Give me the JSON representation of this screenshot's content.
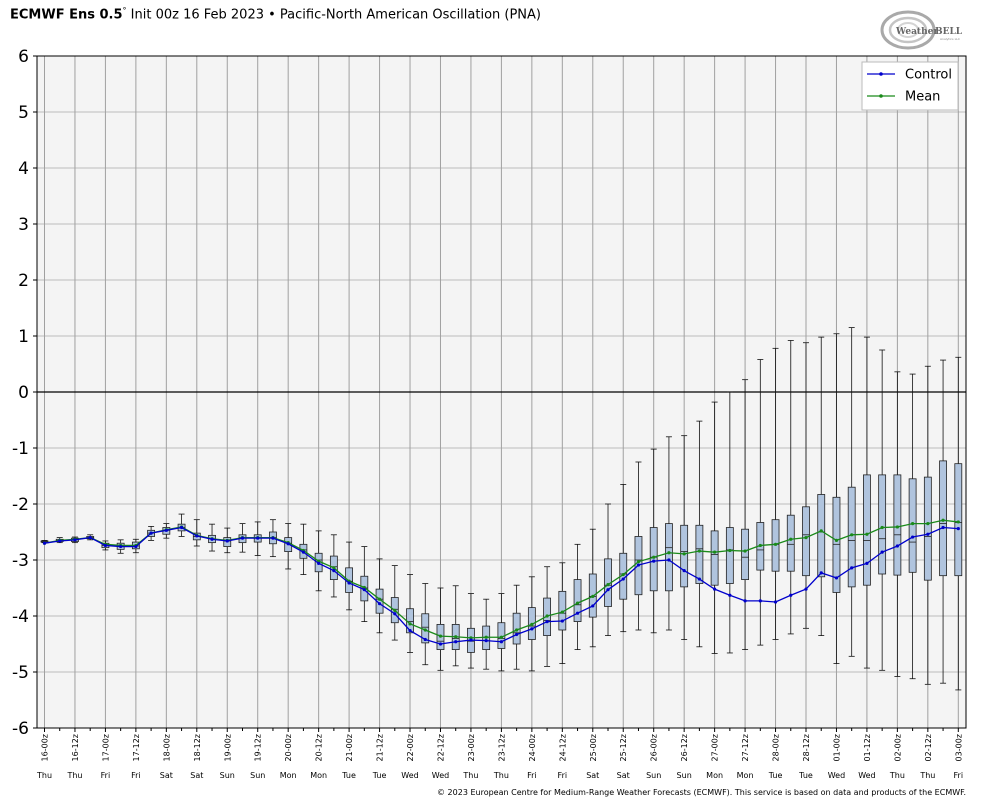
{
  "header": {
    "model": "ECMWF Ens 0.5",
    "degree": "°",
    "rest": " Init 00z 16 Feb 2023 • Pacific-North American Oscillation (PNA)"
  },
  "logo": {
    "text": "WeatherBELL",
    "sub": "Analytics LLC"
  },
  "footer": "© 2023 European Centre for Medium-Range Weather Forecasts (ECMWF). This service is based on data and products of the ECMWF.",
  "chart_data": {
    "type": "box",
    "ylim": [
      -6,
      6
    ],
    "yticks": [
      6,
      5,
      4,
      3,
      2,
      1,
      0,
      -1,
      -2,
      -3,
      -4,
      -5,
      -6
    ],
    "legend": {
      "placement": "top-right",
      "entries": [
        "Control",
        "Mean"
      ]
    },
    "colors": {
      "control": "#0000cc",
      "mean": "#1a8a1a",
      "box": "#b0c4de",
      "plot_bg": "#f4f4f4"
    },
    "x_labels": [
      "16-00z",
      "16-12z",
      "17-00z",
      "17-12z",
      "18-00z",
      "18-12z",
      "19-00z",
      "19-12z",
      "20-00z",
      "20-12z",
      "21-00z",
      "21-12z",
      "22-00z",
      "22-12z",
      "23-00z",
      "23-12z",
      "24-00z",
      "24-12z",
      "25-00z",
      "25-12z",
      "26-00z",
      "26-12z",
      "27-00z",
      "27-12z",
      "28-00z",
      "28-12z",
      "01-00z",
      "01-12z",
      "02-00z",
      "02-12z",
      "03-00z"
    ],
    "day_labels": [
      "Thu",
      "Thu",
      "Fri",
      "Fri",
      "Sat",
      "Sat",
      "Sun",
      "Sun",
      "Mon",
      "Mon",
      "Tue",
      "Tue",
      "Wed",
      "Wed",
      "Thu",
      "Thu",
      "Fri",
      "Fri",
      "Sat",
      "Sat",
      "Sun",
      "Sun",
      "Mon",
      "Mon",
      "Tue",
      "Tue",
      "Wed",
      "Wed",
      "Thu",
      "Thu",
      "Fri"
    ],
    "series": [
      {
        "name": "Control",
        "values": [
          -2.7,
          -2.66,
          -2.64,
          -2.6,
          -2.74,
          -2.76,
          -2.76,
          -2.52,
          -2.47,
          -2.42,
          -2.57,
          -2.63,
          -2.66,
          -2.61,
          -2.61,
          -2.61,
          -2.71,
          -2.86,
          -3.06,
          -3.19,
          -3.41,
          -3.53,
          -3.78,
          -3.96,
          -4.26,
          -4.42,
          -4.5,
          -4.46,
          -4.43,
          -4.44,
          -4.46,
          -4.33,
          -4.23,
          -4.1,
          -4.09,
          -3.95,
          -3.82,
          -3.53,
          -3.34,
          -3.09,
          -3.02,
          -3.0,
          -3.19,
          -3.34,
          -3.52,
          -3.63,
          -3.73,
          -3.73,
          -3.75,
          -3.63,
          -3.52,
          -3.23,
          -3.32,
          -3.14,
          -3.06,
          -2.86,
          -2.75,
          -2.59,
          -2.54,
          -2.42,
          -2.44
        ]
      },
      {
        "name": "Mean",
        "values": [
          -2.7,
          -2.65,
          -2.63,
          -2.6,
          -2.72,
          -2.74,
          -2.74,
          -2.52,
          -2.46,
          -2.41,
          -2.56,
          -2.62,
          -2.65,
          -2.6,
          -2.6,
          -2.6,
          -2.69,
          -2.83,
          -3.02,
          -3.14,
          -3.38,
          -3.49,
          -3.7,
          -3.9,
          -4.14,
          -4.25,
          -4.36,
          -4.37,
          -4.39,
          -4.38,
          -4.38,
          -4.25,
          -4.15,
          -4.0,
          -3.93,
          -3.77,
          -3.65,
          -3.44,
          -3.26,
          -3.03,
          -2.95,
          -2.87,
          -2.89,
          -2.84,
          -2.86,
          -2.83,
          -2.84,
          -2.74,
          -2.72,
          -2.63,
          -2.6,
          -2.48,
          -2.65,
          -2.55,
          -2.54,
          -2.42,
          -2.41,
          -2.35,
          -2.35,
          -2.29,
          -2.32
        ]
      }
    ],
    "boxes": [
      [
        -2.69,
        -2.68,
        -2.67,
        -2.66,
        -2.65
      ],
      [
        -2.69,
        -2.67,
        -2.65,
        -2.63,
        -2.6
      ],
      [
        -2.69,
        -2.67,
        -2.64,
        -2.61,
        -2.59
      ],
      [
        -2.64,
        -2.62,
        -2.6,
        -2.58,
        -2.55
      ],
      [
        -2.82,
        -2.78,
        -2.74,
        -2.7,
        -2.66
      ],
      [
        -2.88,
        -2.81,
        -2.76,
        -2.7,
        -2.64
      ],
      [
        -2.87,
        -2.8,
        -2.75,
        -2.68,
        -2.63
      ],
      [
        -2.65,
        -2.58,
        -2.52,
        -2.47,
        -2.4
      ],
      [
        -2.61,
        -2.54,
        -2.47,
        -2.42,
        -2.35
      ],
      [
        -2.58,
        -2.48,
        -2.42,
        -2.36,
        -2.18
      ],
      [
        -2.75,
        -2.64,
        -2.58,
        -2.52,
        -2.28
      ],
      [
        -2.84,
        -2.69,
        -2.62,
        -2.56,
        -2.36
      ],
      [
        -2.87,
        -2.76,
        -2.66,
        -2.6,
        -2.43
      ],
      [
        -2.86,
        -2.69,
        -2.6,
        -2.55,
        -2.35
      ],
      [
        -2.92,
        -2.68,
        -2.6,
        -2.55,
        -2.32
      ],
      [
        -2.94,
        -2.71,
        -2.6,
        -2.5,
        -2.28
      ],
      [
        -3.16,
        -2.85,
        -2.7,
        -2.6,
        -2.35
      ],
      [
        -3.26,
        -2.97,
        -2.82,
        -2.72,
        -2.36
      ],
      [
        -3.55,
        -3.21,
        -3.0,
        -2.88,
        -2.48
      ],
      [
        -3.66,
        -3.35,
        -3.12,
        -2.93,
        -2.55
      ],
      [
        -3.89,
        -3.58,
        -3.38,
        -3.14,
        -2.68
      ],
      [
        -4.1,
        -3.73,
        -3.5,
        -3.29,
        -2.76
      ],
      [
        -4.3,
        -3.95,
        -3.7,
        -3.52,
        -2.98
      ],
      [
        -4.43,
        -4.12,
        -3.88,
        -3.67,
        -3.1
      ],
      [
        -4.65,
        -4.3,
        -4.1,
        -3.87,
        -3.26
      ],
      [
        -4.87,
        -4.48,
        -4.2,
        -3.96,
        -3.42
      ],
      [
        -4.97,
        -4.6,
        -4.45,
        -4.15,
        -3.5
      ],
      [
        -4.89,
        -4.6,
        -4.4,
        -4.15,
        -3.46
      ],
      [
        -4.93,
        -4.65,
        -4.45,
        -4.22,
        -3.6
      ],
      [
        -4.95,
        -4.6,
        -4.38,
        -4.18,
        -3.7
      ],
      [
        -4.98,
        -4.58,
        -4.4,
        -4.12,
        -3.6
      ],
      [
        -4.95,
        -4.5,
        -4.3,
        -3.95,
        -3.45
      ],
      [
        -4.98,
        -4.42,
        -4.18,
        -3.85,
        -3.3
      ],
      [
        -4.9,
        -4.35,
        -4.08,
        -3.68,
        -3.12
      ],
      [
        -4.85,
        -4.25,
        -3.95,
        -3.56,
        -3.05
      ],
      [
        -4.6,
        -4.1,
        -3.8,
        -3.35,
        -2.72
      ],
      [
        -4.55,
        -4.02,
        -3.65,
        -3.25,
        -2.45
      ],
      [
        -4.35,
        -3.83,
        -3.45,
        -2.98,
        -2.0
      ],
      [
        -4.28,
        -3.7,
        -3.25,
        -2.88,
        -1.65
      ],
      [
        -4.25,
        -3.62,
        -3.0,
        -2.58,
        -1.25
      ],
      [
        -4.3,
        -3.55,
        -2.95,
        -2.42,
        -1.02
      ],
      [
        -4.25,
        -3.55,
        -2.78,
        -2.35,
        -0.8
      ],
      [
        -4.42,
        -3.48,
        -2.85,
        -2.38,
        -0.78
      ],
      [
        -4.55,
        -3.42,
        -2.8,
        -2.38,
        -0.52
      ],
      [
        -4.67,
        -3.45,
        -2.9,
        -2.48,
        -0.18
      ],
      [
        -4.66,
        -3.42,
        -2.82,
        -2.42,
        0.0
      ],
      [
        -4.6,
        -3.35,
        -2.95,
        -2.45,
        0.22
      ],
      [
        -4.52,
        -3.18,
        -2.82,
        -2.33,
        0.58
      ],
      [
        -4.42,
        -3.2,
        -2.72,
        -2.28,
        0.78
      ],
      [
        -4.32,
        -3.2,
        -2.72,
        -2.2,
        0.92
      ],
      [
        -4.22,
        -3.28,
        -2.55,
        -2.05,
        0.88
      ],
      [
        -4.35,
        -3.3,
        -2.5,
        -1.83,
        0.98
      ],
      [
        -4.85,
        -3.58,
        -2.72,
        -1.88,
        1.04
      ],
      [
        -4.72,
        -3.48,
        -2.65,
        -1.7,
        1.15
      ],
      [
        -4.93,
        -3.45,
        -2.65,
        -1.48,
        0.98
      ],
      [
        -4.97,
        -3.25,
        -2.62,
        -1.48,
        0.75
      ],
      [
        -5.08,
        -3.27,
        -2.55,
        -1.48,
        0.36
      ],
      [
        -5.12,
        -3.22,
        -2.68,
        -1.55,
        0.32
      ],
      [
        -5.22,
        -3.36,
        -2.58,
        -1.52,
        0.46
      ],
      [
        -5.2,
        -3.28,
        -2.35,
        -1.23,
        0.57
      ],
      [
        -5.32,
        -3.28,
        -2.33,
        -1.28,
        0.62
      ]
    ]
  }
}
